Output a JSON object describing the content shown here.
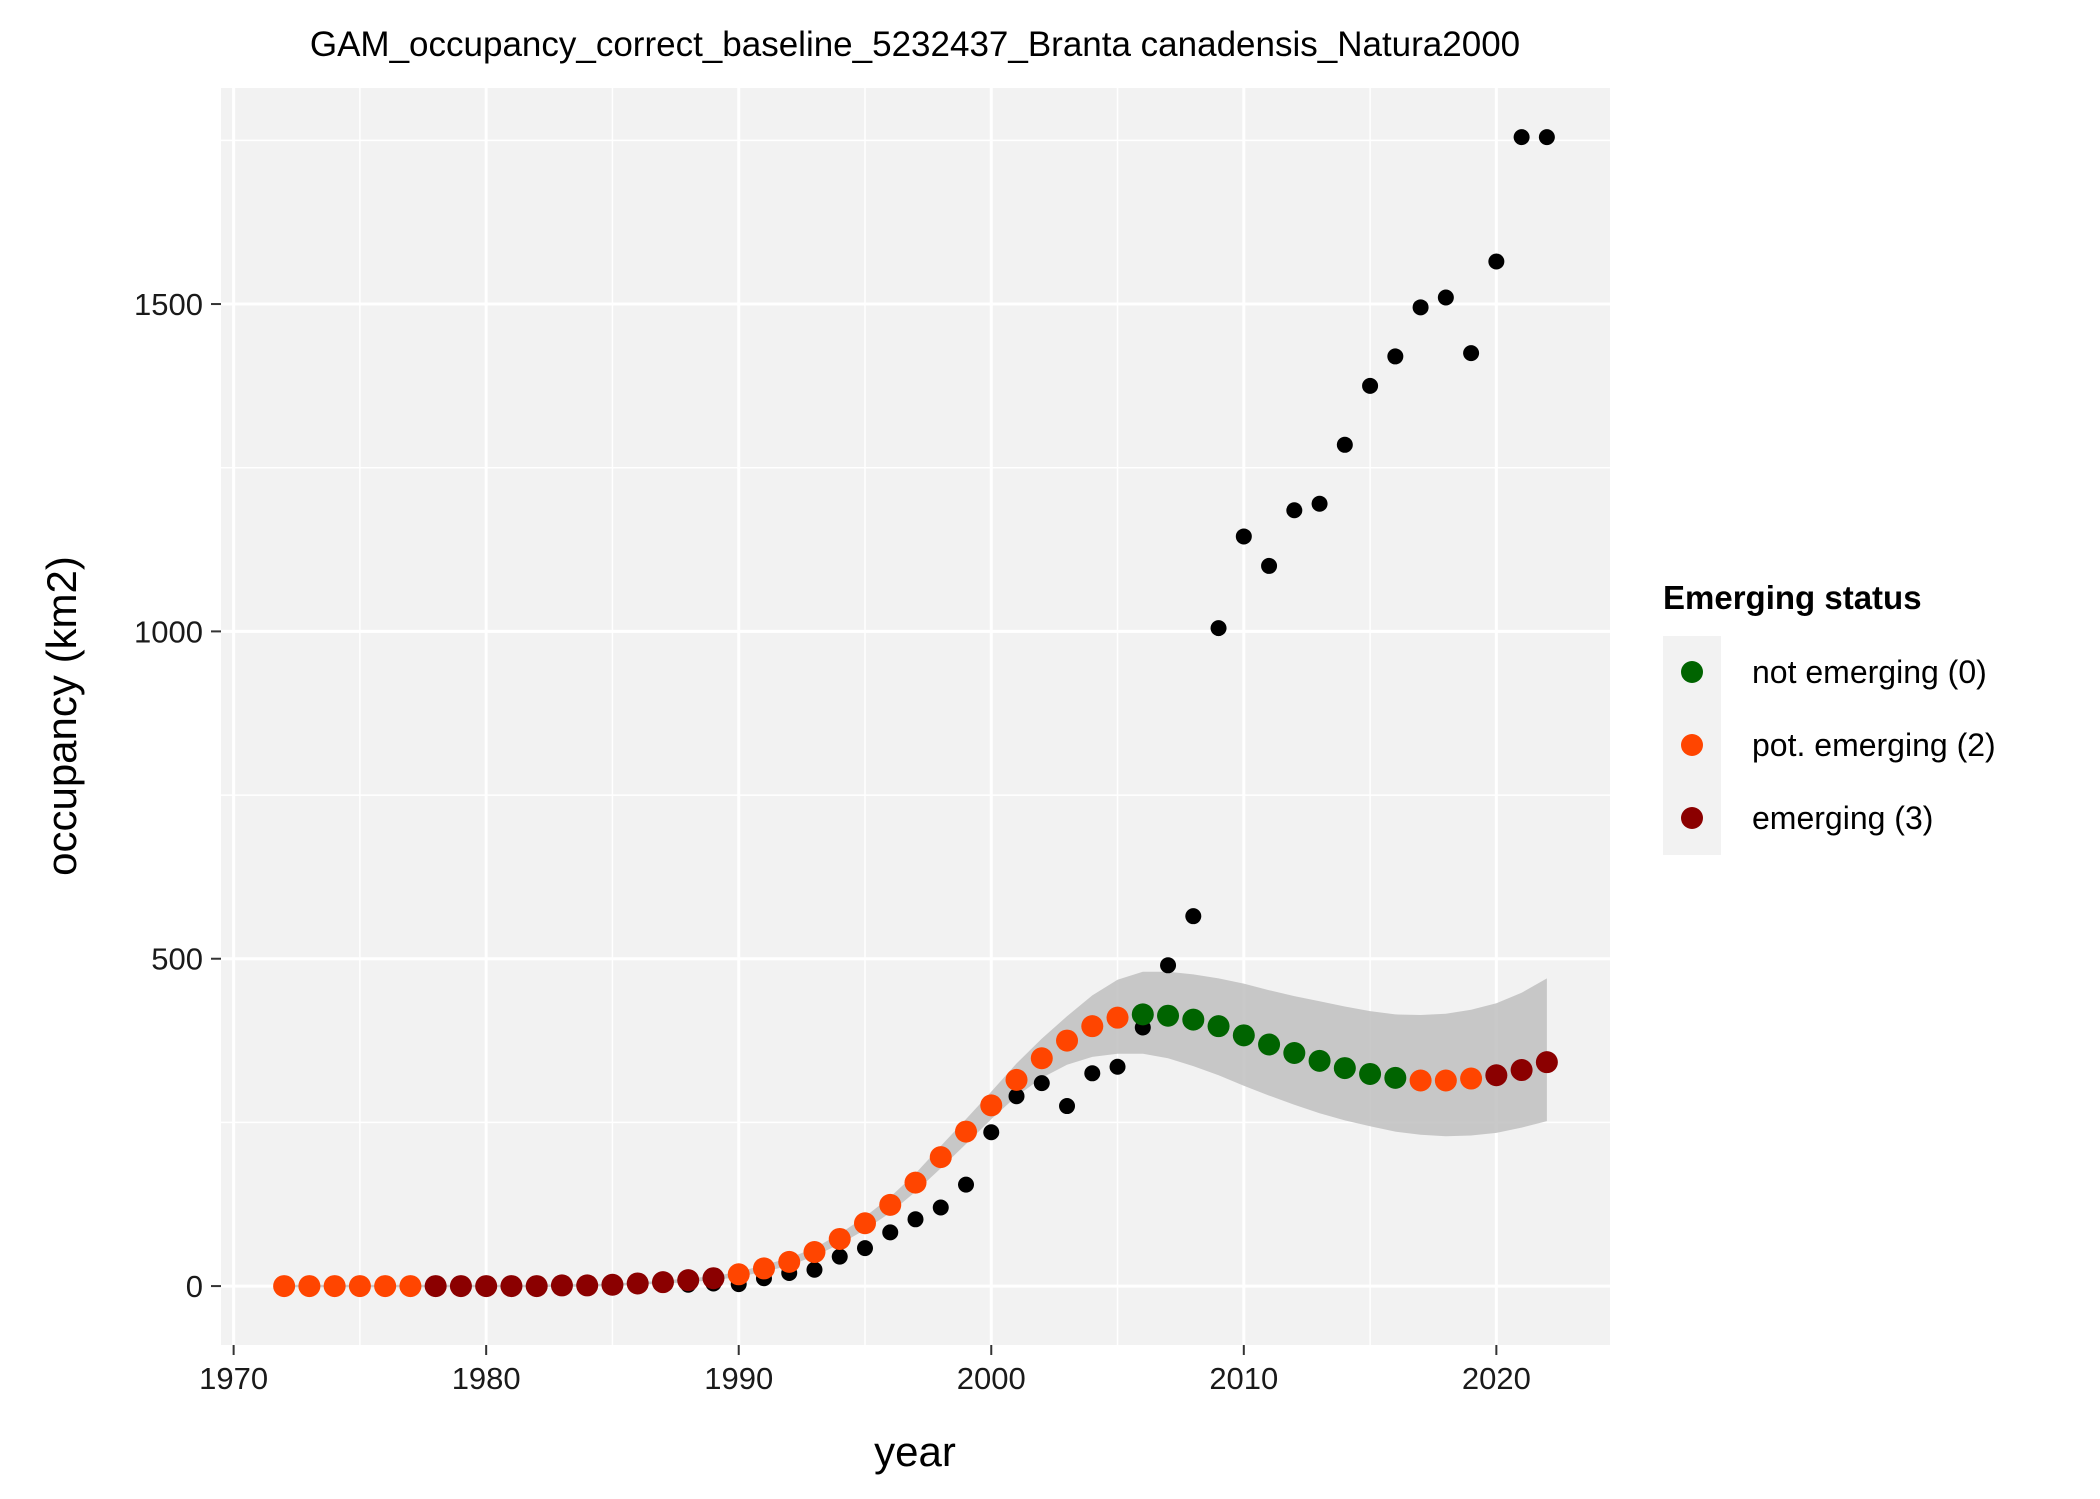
{
  "chart_data": {
    "type": "scatter",
    "title": "GAM_occupancy_correct_baseline_5232437_Branta canadensis_Natura2000",
    "xlabel": "year",
    "ylabel": "occupancy (km2)",
    "xlim": [
      1969.5,
      2024.5
    ],
    "ylim": [
      -90,
      1830
    ],
    "x_ticks": [
      1970,
      1980,
      1990,
      2000,
      2010,
      2020
    ],
    "y_ticks": [
      0,
      500,
      1000,
      1500
    ],
    "grid": true,
    "legend": {
      "title": "Emerging status",
      "position": "right",
      "entries": [
        {
          "label": "not emerging (0)",
          "color": "#006400"
        },
        {
          "label": "pot. emerging (2)",
          "color": "#ff4500"
        },
        {
          "label": "emerging (3)",
          "color": "#8b0000"
        }
      ]
    },
    "colors": {
      "observed": "#000000",
      "status_0": "#006400",
      "status_2": "#ff4500",
      "status_3": "#8b0000",
      "ribbon": "#bfbfbf",
      "panel": "#f2f2f2",
      "grid": "#ffffff"
    },
    "observed": {
      "x": [
        1988,
        1989,
        1990,
        1991,
        1992,
        1993,
        1994,
        1995,
        1996,
        1997,
        1998,
        1999,
        2000,
        2001,
        2002,
        2003,
        2004,
        2005,
        2006,
        2007,
        2008,
        2009,
        2010,
        2011,
        2012,
        2013,
        2014,
        2015,
        2016,
        2017,
        2018,
        2019,
        2020,
        2021,
        2022
      ],
      "y": [
        2,
        4,
        3,
        12,
        20,
        25,
        45,
        58,
        82,
        102,
        120,
        155,
        235,
        290,
        310,
        275,
        325,
        335,
        395,
        490,
        565,
        1005,
        1145,
        1100,
        1185,
        1195,
        1285,
        1375,
        1420,
        1495,
        1510,
        1425,
        1565,
        1755,
        1755
      ]
    },
    "fitted": {
      "x": [
        1972,
        1973,
        1974,
        1975,
        1976,
        1977,
        1978,
        1979,
        1980,
        1981,
        1982,
        1983,
        1984,
        1985,
        1986,
        1987,
        1988,
        1989,
        1990,
        1991,
        1992,
        1993,
        1994,
        1995,
        1996,
        1997,
        1998,
        1999,
        2000,
        2001,
        2002,
        2003,
        2004,
        2005,
        2006,
        2007,
        2008,
        2009,
        2010,
        2011,
        2012,
        2013,
        2014,
        2015,
        2016,
        2017,
        2018,
        2019,
        2020,
        2021,
        2022
      ],
      "y": [
        0,
        0,
        0,
        0,
        0,
        0,
        0,
        0,
        0,
        0,
        0,
        1,
        1,
        2,
        4,
        6,
        9,
        12,
        18,
        27,
        37,
        52,
        72,
        96,
        124,
        158,
        197,
        236,
        276,
        315,
        348,
        375,
        397,
        410,
        415,
        413,
        407,
        397,
        383,
        369,
        356,
        344,
        333,
        324,
        318,
        314,
        314,
        317,
        322,
        330,
        342
      ],
      "status": [
        2,
        2,
        2,
        2,
        2,
        2,
        3,
        3,
        3,
        3,
        3,
        3,
        3,
        3,
        3,
        3,
        3,
        3,
        2,
        2,
        2,
        2,
        2,
        2,
        2,
        2,
        2,
        2,
        2,
        2,
        2,
        2,
        2,
        2,
        0,
        0,
        0,
        0,
        0,
        0,
        0,
        0,
        0,
        0,
        0,
        2,
        2,
        2,
        3,
        3,
        3
      ],
      "lower": [
        -2,
        -2,
        -2,
        -2,
        -2,
        -2,
        -2,
        -2,
        -2,
        -2,
        -2,
        -1,
        -1,
        0,
        2,
        4,
        6,
        9,
        14,
        22,
        31,
        46,
        64,
        86,
        112,
        144,
        180,
        217,
        255,
        290,
        318,
        338,
        350,
        355,
        355,
        348,
        336,
        322,
        306,
        291,
        277,
        264,
        253,
        244,
        236,
        231,
        229,
        230,
        234,
        242,
        252
      ],
      "upper": [
        2,
        2,
        2,
        2,
        2,
        2,
        2,
        2,
        2,
        2,
        2,
        3,
        3,
        4,
        6,
        8,
        12,
        15,
        22,
        32,
        43,
        58,
        80,
        106,
        136,
        172,
        214,
        255,
        297,
        340,
        378,
        412,
        444,
        468,
        480,
        480,
        476,
        470,
        462,
        452,
        443,
        435,
        427,
        420,
        415,
        414,
        416,
        422,
        432,
        448,
        470
      ]
    }
  }
}
